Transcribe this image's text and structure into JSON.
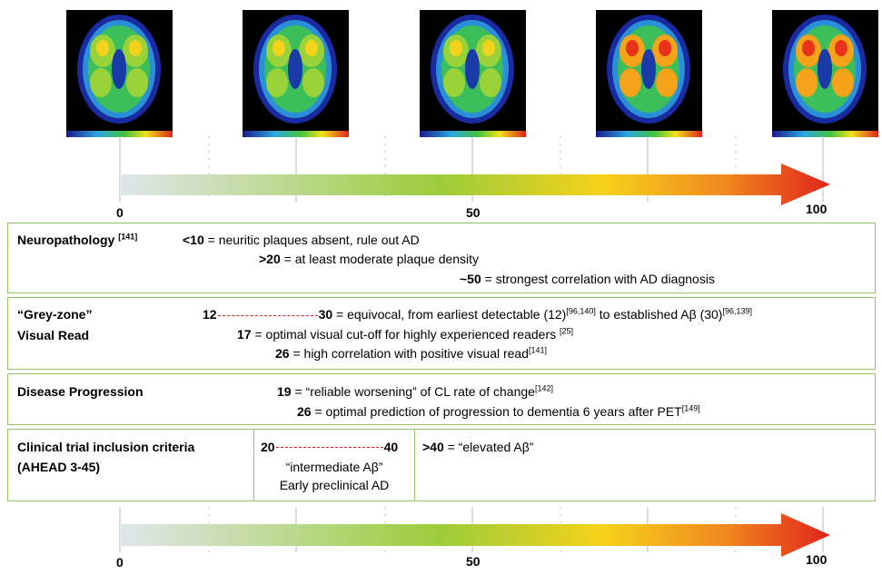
{
  "scans": [
    {
      "icon": "brain-pet-scan-icon-0"
    },
    {
      "icon": "brain-pet-scan-icon-1"
    },
    {
      "icon": "brain-pet-scan-icon-2"
    },
    {
      "icon": "brain-pet-scan-icon-3"
    },
    {
      "icon": "brain-pet-scan-icon-4"
    }
  ],
  "scale": {
    "min": 0,
    "mid": 50,
    "max": 100,
    "label_0": "0",
    "label_50": "50",
    "label_100": "100"
  },
  "colors": {
    "box_border": "#8fc46a",
    "dash": "#e21b1b",
    "gradient_start": "#dfe6ec",
    "gradient_mid": "#9ccc3a",
    "gradient_yellow": "#f6d21a",
    "gradient_end": "#e0241b"
  },
  "neuropathology": {
    "title": "Neuropathology",
    "title_ref": "[141]",
    "line1_value": "<10",
    "line1_text": " = neuritic plaques absent, rule out AD",
    "line2_value": ">20",
    "line2_text": " = at least moderate plaque density",
    "line3_value": "~50",
    "line3_text": " = strongest correlation with AD diagnosis"
  },
  "greyzone": {
    "title1": "“Grey-zone”",
    "title2": "Visual Read",
    "range_start": "12",
    "range_end": "30",
    "range_text_a": " = equivocal, from earliest detectable (12)",
    "range_ref_a": "[96,140]",
    "range_text_b": " to established Aβ (30)",
    "range_ref_b": "[96,139]",
    "line2_value": "17",
    "line2_text": " = optimal visual cut-off for highly experienced readers ",
    "line2_ref": "[25]",
    "line3_value": "26",
    "line3_text": " = high correlation with positive visual read",
    "line3_ref": "[141]"
  },
  "progression": {
    "title": "Disease Progression",
    "line1_value": "19",
    "line1_text": " = “reliable worsening” of CL rate of change",
    "line1_ref": "[142]",
    "line2_value": "26",
    "line2_text": " = optimal prediction of progression to dementia 6 years after PET",
    "line2_ref": "[149]"
  },
  "clinical": {
    "title1": "Clinical trial inclusion criteria",
    "title2": "(AHEAD 3-45)",
    "range_start": "20",
    "range_end": "40",
    "mid_label1": "“intermediate Aβ”",
    "mid_label2": "Early preclinical AD",
    "high_value": ">40",
    "high_text": " = “elevated Aβ”"
  }
}
